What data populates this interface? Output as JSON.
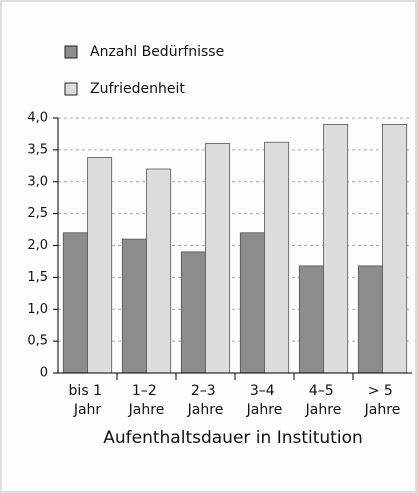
{
  "chart_data": {
    "type": "bar",
    "categories": [
      "bis 1 Jahr",
      "1–2 Jahre",
      "2–3 Jahre",
      "3–4 Jahre",
      "4–5 Jahre",
      "> 5 Jahre"
    ],
    "series": [
      {
        "name": "Anzahl Bedürfnisse",
        "color": "#8c8c8c",
        "values": [
          2.2,
          2.1,
          1.9,
          2.2,
          1.68,
          1.68
        ]
      },
      {
        "name": "Zufriedenheit",
        "color": "#dcdcdc",
        "values": [
          3.38,
          3.2,
          3.6,
          3.62,
          3.9,
          3.9
        ]
      }
    ],
    "xlabel": "Aufenthaltsdauer in Institution",
    "ylim": [
      0,
      4
    ],
    "yticks": [
      0,
      {
        "value": 0.5,
        "label": "0,5"
      },
      {
        "value": 1,
        "label": "1,0"
      },
      {
        "value": 1.5,
        "label": "1,5"
      },
      {
        "value": 2,
        "label": "2,0"
      },
      {
        "value": 2.5,
        "label": "2,5"
      },
      {
        "value": 3,
        "label": "3,0"
      },
      {
        "value": 3.5,
        "label": "3,5"
      },
      {
        "value": 4,
        "label": "4,0"
      }
    ],
    "grid": true,
    "legend": "top-left"
  }
}
